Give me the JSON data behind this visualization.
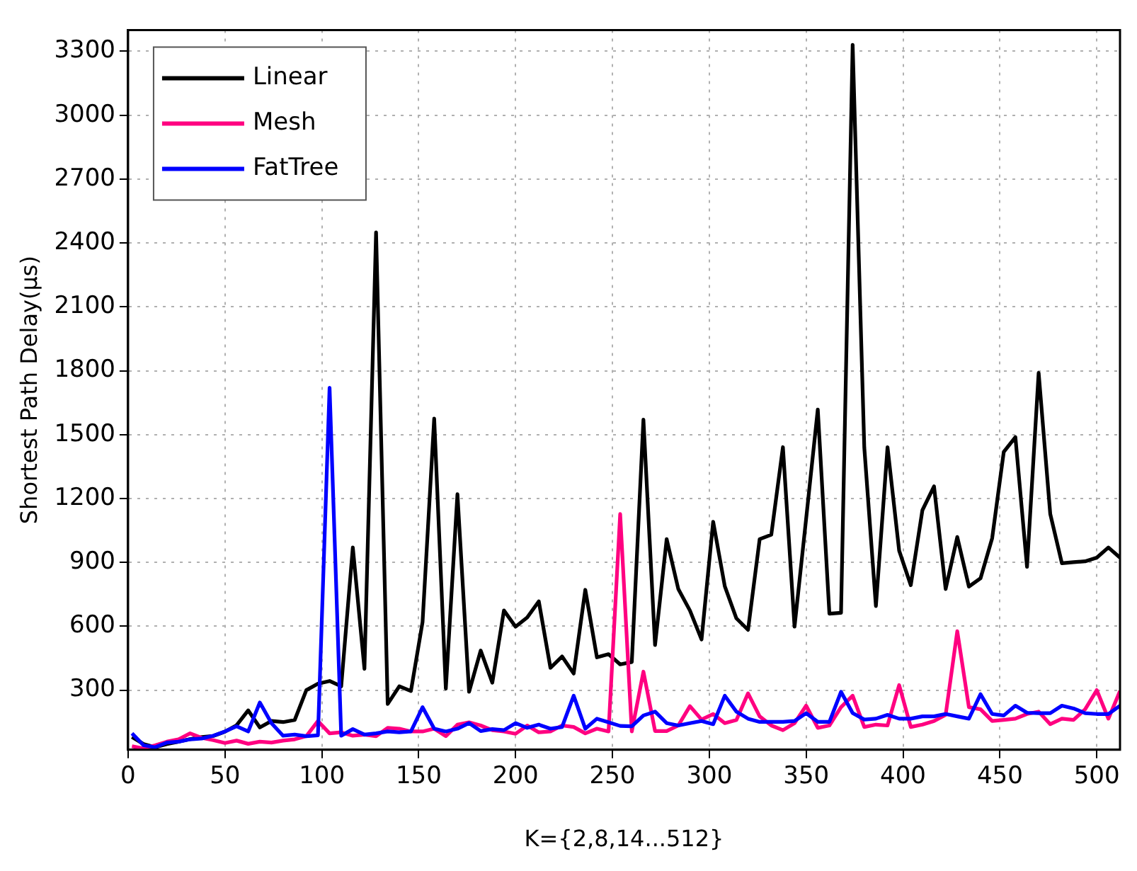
{
  "chart_data": {
    "type": "line",
    "xlabel": "K={2,8,14...512}",
    "ylabel": "Shortest Path Delay(μs)",
    "x": [
      2,
      8,
      14,
      20,
      26,
      32,
      38,
      44,
      50,
      56,
      62,
      68,
      74,
      80,
      86,
      92,
      98,
      104,
      110,
      116,
      122,
      128,
      134,
      140,
      146,
      152,
      158,
      164,
      170,
      176,
      182,
      188,
      194,
      200,
      206,
      212,
      218,
      224,
      230,
      236,
      242,
      248,
      254,
      260,
      266,
      272,
      278,
      284,
      290,
      296,
      302,
      308,
      314,
      320,
      326,
      332,
      338,
      344,
      350,
      356,
      362,
      368,
      374,
      380,
      386,
      392,
      398,
      404,
      410,
      416,
      422,
      428,
      434,
      440,
      446,
      452,
      458,
      464,
      470,
      476,
      482,
      488,
      494,
      500,
      506,
      512
    ],
    "series": [
      {
        "name": "Linear",
        "color": "#000000",
        "values": [
          80,
          47,
          32,
          47,
          58,
          70,
          80,
          85,
          105,
          135,
          205,
          125,
          155,
          150,
          160,
          300,
          330,
          343,
          318,
          970,
          400,
          2450,
          235,
          318,
          296,
          620,
          1575,
          307,
          1220,
          292,
          486,
          335,
          674,
          598,
          641,
          717,
          405,
          458,
          378,
          771,
          454,
          469,
          421,
          432,
          1570,
          512,
          1009,
          775,
          674,
          538,
          1091,
          788,
          637,
          583,
          1009,
          1030,
          1441,
          598,
          1106,
          1618,
          659,
          663,
          3330,
          1440,
          695,
          1441,
          955,
          793,
          1145,
          1257,
          775,
          1019,
          786,
          825,
          1013,
          1419,
          1488,
          879,
          1790,
          1127,
          896,
          901,
          905,
          922,
          970,
          922
        ]
      },
      {
        "name": "Mesh",
        "color": "#ff0080",
        "values": [
          37,
          26,
          41,
          58,
          69,
          97,
          76,
          65,
          52,
          63,
          48,
          58,
          54,
          63,
          69,
          84,
          155,
          97,
          102,
          86,
          91,
          84,
          123,
          119,
          106,
          106,
          119,
          84,
          138,
          149,
          134,
          112,
          106,
          95,
          134,
          102,
          106,
          134,
          127,
          97,
          119,
          106,
          1127,
          106,
          387,
          108,
          108,
          134,
          225,
          162,
          188,
          145,
          160,
          285,
          177,
          134,
          112,
          145,
          227,
          123,
          134,
          220,
          274,
          127,
          138,
          134,
          324,
          127,
          138,
          155,
          184,
          577,
          220,
          210,
          155,
          160,
          166,
          188,
          199,
          140,
          166,
          160,
          210,
          300,
          166,
          296
        ]
      },
      {
        "name": "FatTree",
        "color": "#0000ff",
        "values": [
          97,
          41,
          32,
          54,
          58,
          69,
          73,
          86,
          106,
          130,
          106,
          242,
          145,
          86,
          91,
          84,
          88,
          1720,
          86,
          117,
          91,
          97,
          106,
          102,
          106,
          220,
          119,
          106,
          119,
          145,
          108,
          117,
          112,
          145,
          123,
          138,
          119,
          127,
          274,
          119,
          166,
          149,
          132,
          130,
          181,
          199,
          145,
          134,
          145,
          155,
          140,
          274,
          199,
          166,
          151,
          151,
          151,
          155,
          192,
          151,
          151,
          292,
          192,
          162,
          166,
          184,
          166,
          166,
          177,
          177,
          188,
          177,
          166,
          281,
          188,
          181,
          227,
          194,
          192,
          192,
          227,
          214,
          192,
          188,
          188,
          227
        ]
      }
    ],
    "xlim": [
      0,
      512
    ],
    "xticks": [
      0,
      50,
      100,
      150,
      200,
      250,
      300,
      350,
      400,
      450,
      500
    ],
    "ylim": [
      20,
      3400
    ],
    "yticks": [
      300,
      600,
      900,
      1200,
      1500,
      1800,
      2100,
      2400,
      2700,
      3000,
      3300
    ],
    "grid": true,
    "legend": "top left",
    "marker": "none",
    "line_style": "solid"
  }
}
